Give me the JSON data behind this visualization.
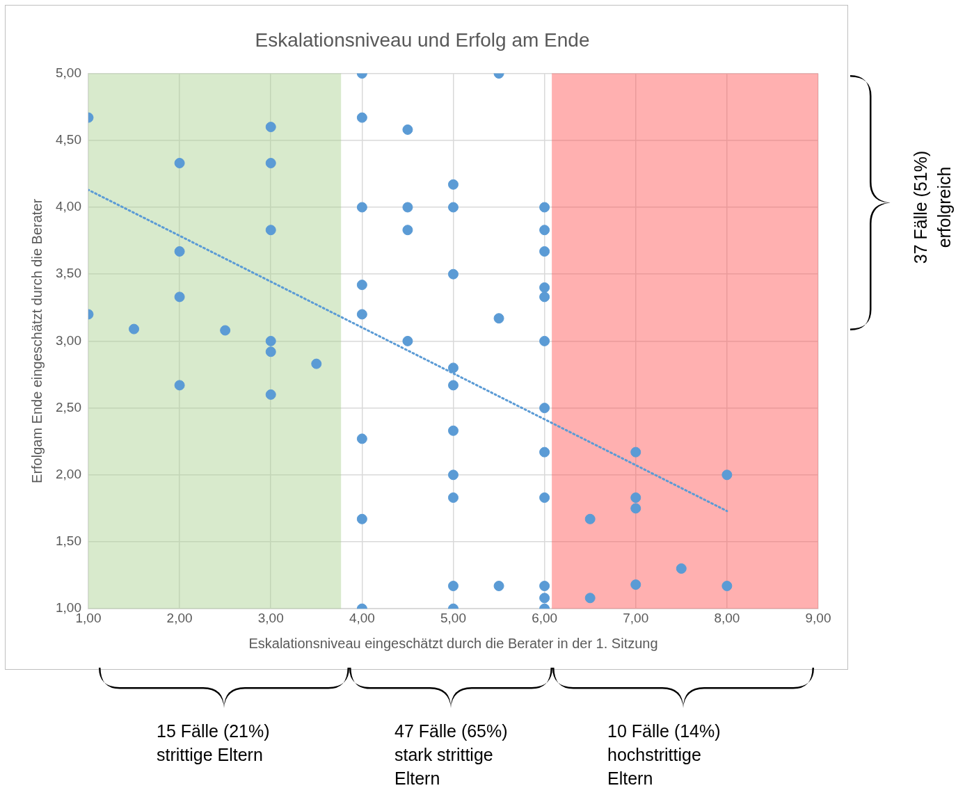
{
  "chart_data": {
    "type": "scatter",
    "title": "Eskalationsniveau und Erfolg am Ende",
    "xlabel": "Eskalationsniveau eingeschätzt durch die Berater in der 1. Sitzung",
    "ylabel": "Erfolgam Ende eingeschätzt durch die Berater",
    "series": [
      {
        "color": "#5b9bd5",
        "x": [
          1,
          1,
          1.5,
          2,
          2,
          2,
          2,
          2.5,
          3,
          3,
          3,
          3,
          3,
          3,
          3.5,
          4,
          4,
          4,
          4,
          4,
          4,
          4,
          4,
          4.5,
          4.5,
          4.5,
          4.5,
          5,
          5,
          5,
          5,
          5,
          5,
          5,
          5,
          5,
          5,
          5.5,
          5.5,
          5.5,
          6,
          6,
          6,
          6,
          6,
          6,
          6,
          6,
          6,
          6,
          6,
          6,
          6.5,
          6.5,
          7,
          7,
          7,
          7,
          7.5,
          8,
          8
        ],
        "values": [
          4.67,
          3.2,
          3.09,
          4.33,
          3.67,
          3.33,
          2.67,
          3.08,
          4.6,
          4.33,
          3.83,
          3.0,
          2.92,
          2.6,
          2.83,
          5.0,
          4.67,
          4.0,
          3.42,
          3.2,
          2.27,
          1.67,
          1.0,
          4.58,
          4.0,
          3.83,
          3.0,
          4.17,
          4.0,
          3.5,
          2.8,
          2.67,
          2.33,
          2.0,
          1.83,
          1.17,
          1.0,
          5.0,
          3.17,
          1.17,
          4.0,
          3.83,
          3.67,
          3.4,
          3.33,
          3.0,
          2.5,
          2.17,
          1.83,
          1.17,
          1.08,
          1.0,
          1.67,
          1.08,
          2.17,
          1.83,
          1.75,
          1.18,
          1.3,
          2.0,
          1.17
        ]
      },
      {
        "type": "line",
        "color": "#5b9bd5",
        "x": [
          1,
          8
        ],
        "values": [
          4.13,
          1.73
        ],
        "line_style": "dotted",
        "marker": "none"
      }
    ],
    "marker": "circle",
    "grid": true,
    "legend": false,
    "xlim": [
      1,
      9
    ],
    "xticks": [
      {
        "value": 1,
        "label": "1,00"
      },
      {
        "value": 2,
        "label": "2,00"
      },
      {
        "value": 3,
        "label": "3,00"
      },
      {
        "value": 4,
        "label": "4,00"
      },
      {
        "value": 5,
        "label": "5,00"
      },
      {
        "value": 6,
        "label": "6,00"
      },
      {
        "value": 7,
        "label": "7,00"
      },
      {
        "value": 8,
        "label": "8,00"
      },
      {
        "value": 9,
        "label": "9,00"
      }
    ],
    "ylim": [
      1,
      5
    ],
    "yticks": [
      {
        "value": 1,
        "label": "1,00"
      },
      {
        "value": 1.5,
        "label": "1,50"
      },
      {
        "value": 2,
        "label": "2,00"
      },
      {
        "value": 2.5,
        "label": "2,50"
      },
      {
        "value": 3,
        "label": "3,00"
      },
      {
        "value": 3.5,
        "label": "3,50"
      },
      {
        "value": 4,
        "label": "4,00"
      },
      {
        "value": 4.5,
        "label": "4,50"
      },
      {
        "value": 5,
        "label": "5,00"
      }
    ],
    "bands": [
      {
        "axis": "x",
        "from": 1,
        "to": 3.77,
        "color": "#a9d18e"
      },
      {
        "axis": "x",
        "from": 6.08,
        "to": 9,
        "color": "#ff5050"
      }
    ],
    "annotations": [
      "15 Fälle (21%)\nstrittige Eltern",
      "47 Fälle (65%)\nstark strittige\nEltern",
      "10 Fälle (14%)\nhochstrittige\nEltern",
      "37 Fälle (51%)\nerfolgreich"
    ]
  }
}
